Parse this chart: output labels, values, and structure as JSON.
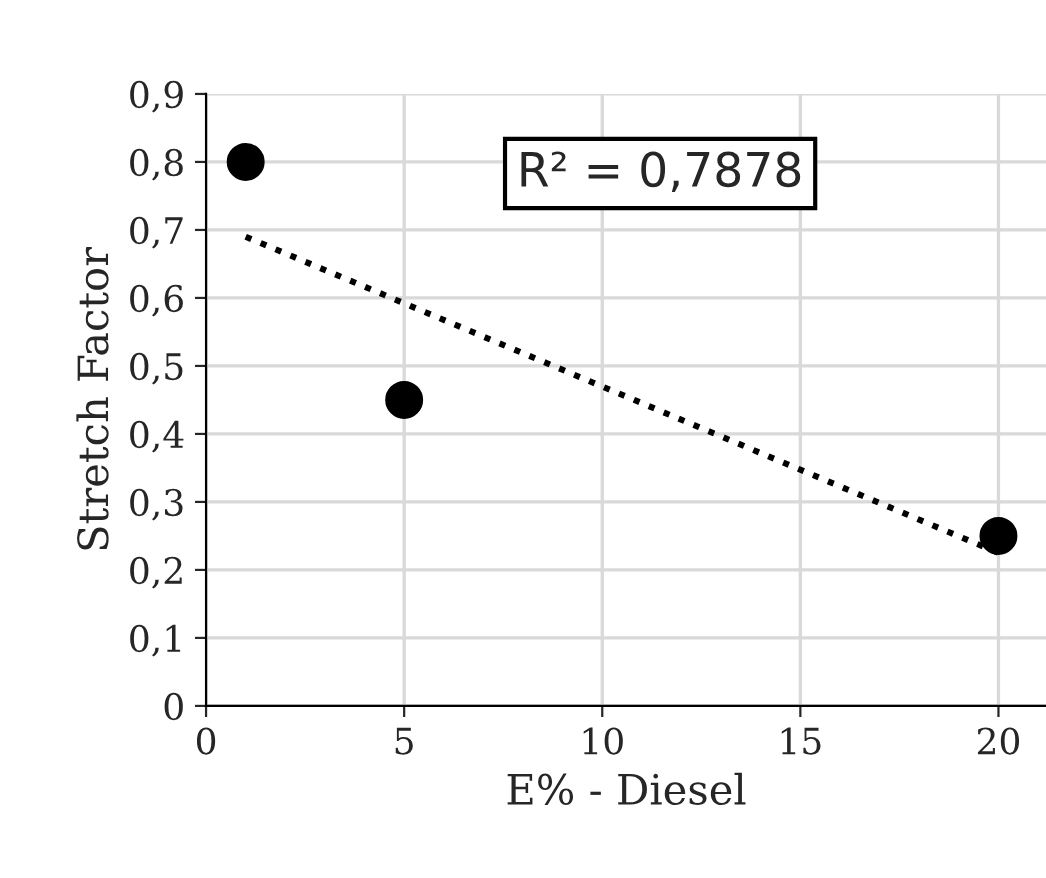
{
  "chart_data": {
    "type": "scatter",
    "xlabel": "E% - Diesel",
    "ylabel": "Stretch Factor",
    "series": [
      {
        "color": "#000000",
        "marker": "circle",
        "x": [
          1,
          5,
          20
        ],
        "values": [
          0.8,
          0.45,
          0.25
        ]
      },
      {
        "type": "line",
        "color": "#000000",
        "line_style": "dotted",
        "marker": "none",
        "x": [
          1,
          20
        ],
        "values": [
          0.69,
          0.225
        ]
      }
    ],
    "xlim": [
      0,
      21.2
    ],
    "xticks": [
      0,
      5,
      10,
      15,
      20
    ],
    "ylim": [
      0,
      0.9
    ],
    "yticks": [
      {
        "value": 0,
        "label": "0"
      },
      {
        "value": 0.1,
        "label": "0,1"
      },
      {
        "value": 0.2,
        "label": "0,2"
      },
      {
        "value": 0.3,
        "label": "0,3"
      },
      {
        "value": 0.4,
        "label": "0,4"
      },
      {
        "value": 0.5,
        "label": "0,5"
      },
      {
        "value": 0.6,
        "label": "0,6"
      },
      {
        "value": 0.7,
        "label": "0,7"
      },
      {
        "value": 0.8,
        "label": "0,8"
      },
      {
        "value": 0.9,
        "label": "0,9"
      }
    ],
    "grid": true,
    "annotations": [
      "R² = 0,7878"
    ]
  }
}
